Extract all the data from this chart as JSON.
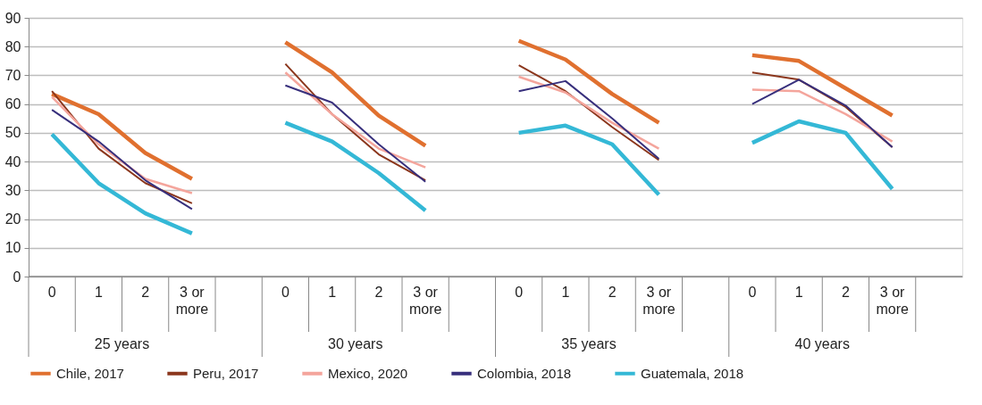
{
  "chart_data": {
    "type": "line",
    "categories": [
      "0",
      "1",
      "2",
      "3 or more",
      null,
      "0",
      "1",
      "2",
      "3 or more",
      null,
      "0",
      "1",
      "2",
      "3 or more",
      null,
      "0",
      "1",
      "2",
      "3 or more",
      null
    ],
    "series": [
      {
        "name": "Chile, 2017",
        "color": "#e0702f",
        "values": [
          63.5,
          56.5,
          43,
          34,
          null,
          81.5,
          71,
          56,
          45.5,
          null,
          82,
          75.5,
          63.5,
          53.5,
          null,
          77,
          75,
          65.5,
          56,
          null
        ]
      },
      {
        "name": "Peru, 2017",
        "color": "#8b361c",
        "values": [
          64.5,
          44.5,
          32.5,
          25.5,
          null,
          74,
          56.5,
          42.5,
          33.5,
          null,
          73.5,
          64.5,
          52,
          40.5,
          null,
          71,
          68.5,
          59,
          45,
          null
        ]
      },
      {
        "name": "Mexico, 2020",
        "color": "#f4a59c",
        "values": [
          62.5,
          46,
          34,
          29,
          null,
          71,
          56.5,
          44.5,
          38,
          null,
          69.5,
          64,
          53.5,
          44.5,
          null,
          65,
          64.5,
          56.5,
          47,
          null
        ]
      },
      {
        "name": "Colombia, 2018",
        "color": "#372f7c",
        "values": [
          58,
          47,
          33.5,
          23.5,
          null,
          66.5,
          60.5,
          46,
          33,
          null,
          64.5,
          68,
          55,
          41,
          null,
          60,
          68.5,
          59.5,
          45,
          null
        ]
      },
      {
        "name": "Guatemala, 2018",
        "color": "#34b8d6",
        "values": [
          49.5,
          32.5,
          22,
          15,
          null,
          53.5,
          47,
          36,
          23,
          null,
          50,
          52.5,
          46,
          28.5,
          null,
          46.5,
          54,
          50,
          30.5,
          null
        ]
      }
    ],
    "annotations": [
      "25 years",
      "30 years",
      "35 years",
      "40 years"
    ],
    "ylim": [
      0,
      90
    ],
    "yticks": [
      0,
      10,
      20,
      30,
      40,
      50,
      60,
      70,
      80,
      90
    ],
    "grid": "y",
    "legend": "bottom",
    "marker": "none",
    "line_style": "solid"
  }
}
